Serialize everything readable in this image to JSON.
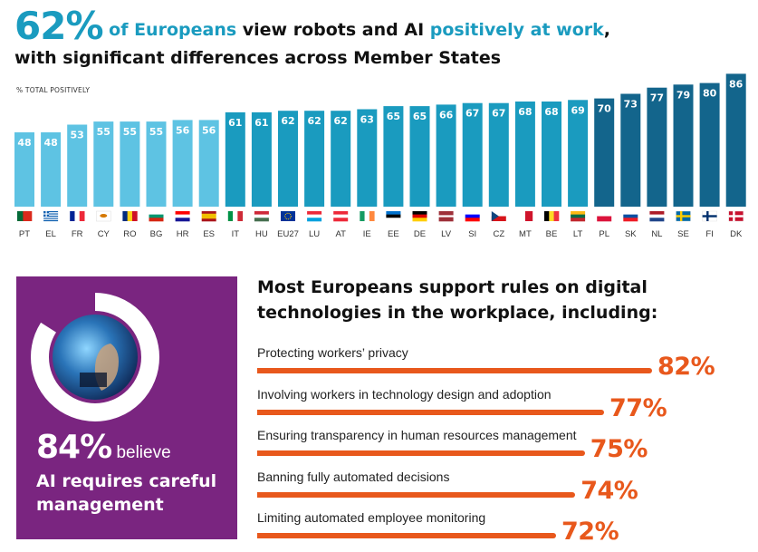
{
  "headline": {
    "pct": "62%",
    "part1": " of Europeans",
    "part2": " view robots and AI ",
    "part3": "positively at work",
    "part4": ",",
    "line2": "with significant differences across Member States"
  },
  "chart_data": {
    "type": "bar",
    "ylabel": "% TOTAL POSITIVELY",
    "categories": [
      "PT",
      "EL",
      "FR",
      "CY",
      "RO",
      "BG",
      "HR",
      "ES",
      "IT",
      "HU",
      "EU27",
      "LU",
      "AT",
      "IE",
      "EE",
      "DE",
      "LV",
      "SI",
      "CZ",
      "MT",
      "BE",
      "LT",
      "PL",
      "SK",
      "NL",
      "SE",
      "FI",
      "DK"
    ],
    "values": [
      48,
      48,
      53,
      55,
      55,
      55,
      56,
      56,
      61,
      61,
      62,
      62,
      62,
      63,
      65,
      65,
      66,
      67,
      67,
      68,
      68,
      69,
      70,
      73,
      77,
      79,
      80,
      86
    ],
    "ylim": [
      0,
      86
    ],
    "colors": {
      "low": "#5ec3e3",
      "mid": "#1a9bbf",
      "high": "#13658c"
    }
  },
  "card": {
    "pct": "84%",
    "believe": " believe",
    "sub": "AI requires careful management",
    "colors": {
      "bg": "#7a2580",
      "ring": "#ffffff"
    }
  },
  "rules": {
    "title": "Most Europeans support rules on digital technologies in the workplace, including:",
    "items": [
      {
        "label": "Protecting workers’ privacy",
        "pct": "82%",
        "value": 82
      },
      {
        "label": "Involving workers in technology design and adoption",
        "pct": "77%",
        "value": 77
      },
      {
        "label": "Ensuring transparency in human resources management",
        "pct": "75%",
        "value": 75
      },
      {
        "label": "Banning fully automated decisions",
        "pct": "74%",
        "value": 74
      },
      {
        "label": "Limiting automated employee monitoring",
        "pct": "72%",
        "value": 72
      }
    ],
    "color": "#e8581c"
  }
}
